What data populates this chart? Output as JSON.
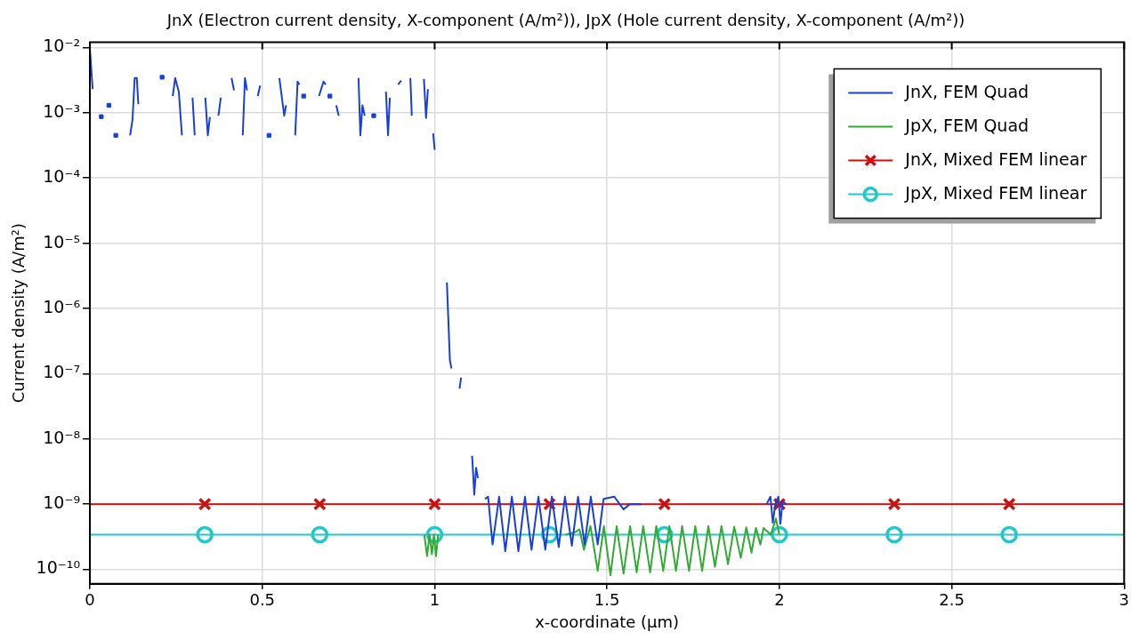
{
  "chart_data": {
    "type": "line",
    "title": "JnX (Electron current density, X-component (A/m²)), JpX (Hole current density, X-component (A/m²))",
    "xlabel": "x-coordinate (µm)",
    "ylabel": "Current density (A/m²)",
    "xlim": [
      0,
      3
    ],
    "xticks": [
      0,
      0.5,
      1,
      1.5,
      2,
      2.5,
      3
    ],
    "ylim": [
      6e-11,
      0.012
    ],
    "log": "y",
    "yticks": [
      {
        "value": 1e-10,
        "label": "10⁻¹⁰"
      },
      {
        "value": 1e-09,
        "label": "10⁻⁹"
      },
      {
        "value": 1e-08,
        "label": "10⁻⁸"
      },
      {
        "value": 1e-07,
        "label": "10⁻⁷"
      },
      {
        "value": 1e-06,
        "label": "10⁻⁶"
      },
      {
        "value": 1e-05,
        "label": "10⁻⁵"
      },
      {
        "value": 0.0001,
        "label": "10⁻⁴"
      },
      {
        "value": 0.001,
        "label": "10⁻³"
      },
      {
        "value": 0.01,
        "label": "10⁻²"
      }
    ],
    "grid": true,
    "legend": "top right",
    "line_style": "solid",
    "series": [
      {
        "name": "JnX, FEM Quad",
        "color": "#1a3fd9",
        "marker": "none",
        "x": [
          0,
          0.008,
          0.02,
          0.033,
          0.045,
          0.055,
          0.065,
          0.075,
          0.1,
          0.1166,
          0.1237,
          0.1298,
          0.136,
          0.1405,
          0.17,
          0.2094,
          0.22,
          0.2403,
          0.2473,
          0.2579,
          0.2669,
          0.28,
          0.2977,
          0.304,
          0.32,
          0.3348,
          0.342,
          0.3481,
          0.36,
          0.3728,
          0.3797,
          0.395,
          0.4108,
          0.418,
          0.43,
          0.4434,
          0.4497,
          0.4558,
          0.47,
          0.4869,
          0.4938,
          0.505,
          0.5195,
          0.535,
          0.5495,
          0.5637,
          0.569,
          0.58,
          0.5955,
          0.6024,
          0.6077,
          0.614,
          0.62,
          0.64,
          0.6645,
          0.6777,
          0.6838,
          0.69,
          0.6962,
          0.705,
          0.7147,
          0.7216,
          0.75,
          0.7792,
          0.7845,
          0.7906,
          0.797,
          0.81,
          0.8233,
          0.84,
          0.8587,
          0.8648,
          0.8701,
          0.88,
          0.894,
          0.903,
          0.915,
          0.9295,
          0.9337,
          0.95,
          0.9689,
          0.9751,
          0.9804,
          0.99,
          0.9957,
          1.0,
          1.02,
          1.0355,
          1.0443,
          1.0488,
          1.06,
          1.0723,
          1.0767,
          1.09,
          1.1087,
          1.115,
          1.1203,
          1.1256,
          1.135,
          1.146,
          1.155,
          1.168,
          1.187,
          1.205,
          1.224,
          1.243,
          1.262,
          1.281,
          1.301,
          1.321,
          1.34,
          1.36,
          1.378,
          1.398,
          1.416,
          1.435,
          1.453,
          1.473,
          1.49,
          1.521,
          1.548,
          1.566,
          1.6,
          1.7,
          1.963,
          1.974,
          1.981,
          1.988,
          1.997,
          2.003,
          2.009,
          2.02
        ],
        "values": [
          0.0095,
          0.0023,
          null,
          0.00087,
          null,
          0.0013,
          null,
          0.00045,
          null,
          0.00045,
          0.00079,
          0.0034,
          0.0034,
          0.00135,
          null,
          0.0035,
          null,
          0.0018,
          0.0034,
          0.0021,
          0.00045,
          null,
          0.0017,
          0.00045,
          null,
          0.0017,
          0.00045,
          0.00086,
          null,
          0.0009,
          0.0017,
          null,
          0.0034,
          0.0022,
          null,
          0.00045,
          0.0034,
          0.0022,
          null,
          0.0018,
          0.0026,
          null,
          0.00045,
          null,
          0.0034,
          0.0009,
          0.0013,
          null,
          0.00045,
          0.003,
          0.0027,
          null,
          0.0018,
          null,
          0.0018,
          0.003,
          0.0027,
          null,
          0.0018,
          null,
          0.0013,
          0.0009,
          null,
          0.0034,
          0.00045,
          0.0013,
          0.0009,
          null,
          0.0009,
          null,
          0.0021,
          0.00045,
          0.0017,
          null,
          0.0027,
          0.0031,
          null,
          0.0034,
          0.0009,
          null,
          0.0033,
          0.00083,
          0.0023,
          null,
          0.00048,
          0.00027,
          null,
          2.5e-06,
          1.6e-07,
          1.2e-07,
          null,
          5.9e-08,
          8.7e-08,
          null,
          5.5e-09,
          1.4e-09,
          3.6e-09,
          2.5e-09,
          null,
          1.2e-09,
          1.3e-09,
          2.4e-10,
          1.3e-09,
          1.9e-10,
          1.3e-09,
          1.9e-10,
          1.3e-09,
          2e-10,
          1.3e-09,
          2e-10,
          1.3e-09,
          2.2e-10,
          1.3e-09,
          2.3e-10,
          1.3e-09,
          2.4e-10,
          1.3e-09,
          2.4e-10,
          1.2e-09,
          1.3e-09,
          8.3e-10,
          1e-09,
          1e-09,
          null,
          1e-09,
          1.3e-09,
          5.2e-10,
          1e-09,
          1.3e-09,
          5e-10,
          1.1e-09,
          1e-09
        ]
      },
      {
        "name": "JpX, FEM Quad",
        "color": "#33aa33",
        "marker": "none",
        "x": [
          0.97,
          0.978,
          0.985,
          0.992,
          0.998,
          1.004,
          1.01,
          1.2,
          1.38,
          1.4065,
          1.42,
          1.433,
          1.452,
          1.473,
          1.491,
          1.51,
          1.528,
          1.548,
          1.567,
          1.586,
          1.605,
          1.625,
          1.643,
          1.663,
          1.681,
          1.7,
          1.718,
          1.738,
          1.756,
          1.776,
          1.794,
          1.813,
          1.832,
          1.851,
          1.869,
          1.888,
          1.904,
          1.919,
          1.932,
          1.945,
          1.954,
          1.975,
          1.99,
          2.0
        ],
        "values": [
          3.4e-10,
          1.6e-10,
          3.4e-10,
          1.7e-10,
          3.4e-10,
          1.6e-10,
          3.4e-10,
          null,
          3.4e-10,
          3.7e-10,
          4.1e-10,
          2e-10,
          4.6e-10,
          9.5e-11,
          4.6e-10,
          8.1e-11,
          4.6e-10,
          8.6e-11,
          4.6e-10,
          9e-11,
          4.6e-10,
          9e-11,
          4.6e-10,
          9.5e-11,
          4.6e-10,
          9.5e-11,
          4.6e-10,
          9.5e-11,
          4.6e-10,
          9.5e-11,
          4.6e-10,
          1.1e-10,
          4.6e-10,
          1.2e-10,
          4.5e-10,
          1.5e-10,
          4.4e-10,
          1.8e-10,
          4.3e-10,
          2.4e-10,
          4.3e-10,
          3.4e-10,
          6e-10,
          3.4e-10
        ]
      },
      {
        "name": "JnX, Mixed FEM linear",
        "color": "#cc1111",
        "marker": "cross",
        "x": [
          0,
          0.3333,
          0.6667,
          1,
          1.3333,
          1.6667,
          2,
          2.3333,
          2.6667,
          3
        ],
        "values": [
          1e-09,
          1e-09,
          1e-09,
          1e-09,
          1e-09,
          1e-09,
          1e-09,
          1e-09,
          1e-09,
          1e-09
        ]
      },
      {
        "name": "JpX, Mixed FEM linear",
        "color": "#22c8c8",
        "marker": "circle",
        "x": [
          0,
          0.3333,
          0.6667,
          1,
          1.3333,
          1.6667,
          2,
          2.3333,
          2.6667,
          3
        ],
        "values": [
          3.4e-10,
          3.4e-10,
          3.4e-10,
          3.4e-10,
          3.4e-10,
          3.4e-10,
          3.4e-10,
          3.4e-10,
          3.4e-10,
          3.4e-10
        ]
      }
    ]
  }
}
